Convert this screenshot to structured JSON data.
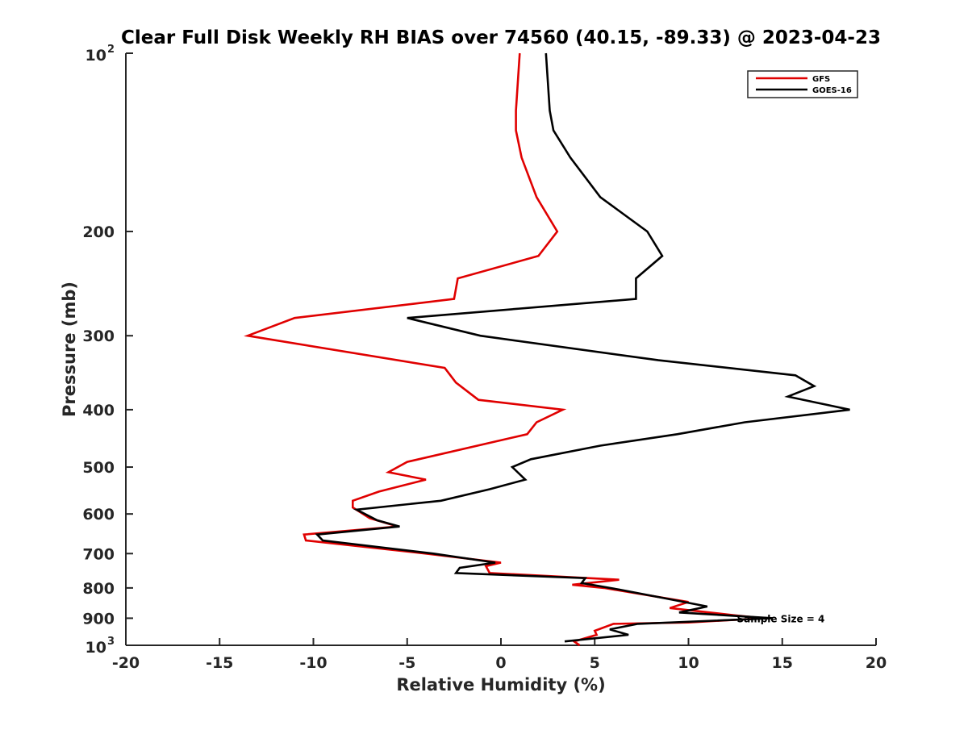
{
  "chart_data": {
    "type": "line",
    "title": "Clear Full Disk Weekly RH BIAS over 74560 (40.15, -89.33) @ 2023-04-23",
    "xlabel": "Relative Humidity (%)",
    "ylabel": "Pressure (mb)",
    "xlim": [
      -20,
      20
    ],
    "ylim": [
      100,
      1000
    ],
    "y_scale": "log",
    "y_reversed": true,
    "x_ticks": [
      -20,
      -15,
      -10,
      -5,
      0,
      5,
      10,
      15,
      20
    ],
    "x_tick_labels": [
      "-20",
      "-15",
      "-10",
      "-5",
      "0",
      "5",
      "10",
      "15",
      "20"
    ],
    "y_ticks": [
      100,
      200,
      300,
      400,
      500,
      600,
      700,
      800,
      900,
      1000
    ],
    "y_tick_labels": [
      {
        "value": 100,
        "base": "10",
        "exp": "2"
      },
      {
        "value": 200,
        "base": "200"
      },
      {
        "value": 300,
        "base": "300"
      },
      {
        "value": 400,
        "base": "400"
      },
      {
        "value": 500,
        "base": "500"
      },
      {
        "value": 600,
        "base": "600"
      },
      {
        "value": 700,
        "base": "700"
      },
      {
        "value": 800,
        "base": "800"
      },
      {
        "value": 900,
        "base": "900"
      },
      {
        "value": 1000,
        "base": "10",
        "exp": "3"
      }
    ],
    "grid": false,
    "legend_position": "top-right",
    "series": [
      {
        "name": "GFS",
        "color": "#e00000",
        "points": [
          [
            1.0,
            100
          ],
          [
            0.8,
            125
          ],
          [
            0.8,
            135
          ],
          [
            1.1,
            150
          ],
          [
            1.9,
            175
          ],
          [
            3.0,
            200
          ],
          [
            2.0,
            220
          ],
          [
            -2.3,
            240
          ],
          [
            -2.5,
            260
          ],
          [
            -11.0,
            280
          ],
          [
            -13.5,
            300
          ],
          [
            -3.0,
            340
          ],
          [
            -2.4,
            360
          ],
          [
            -1.2,
            385
          ],
          [
            3.3,
            400
          ],
          [
            1.9,
            420
          ],
          [
            1.4,
            440
          ],
          [
            -5.0,
            490
          ],
          [
            -6.0,
            510
          ],
          [
            -4.0,
            525
          ],
          [
            -6.5,
            550
          ],
          [
            -7.9,
            570
          ],
          [
            -7.9,
            585
          ],
          [
            -7.0,
            610
          ],
          [
            -5.5,
            630
          ],
          [
            -10.5,
            650
          ],
          [
            -10.4,
            665
          ],
          [
            -4.0,
            700
          ],
          [
            0.0,
            725
          ],
          [
            -0.8,
            735
          ],
          [
            -0.6,
            755
          ],
          [
            6.3,
            775
          ],
          [
            3.8,
            790
          ],
          [
            5.5,
            800
          ],
          [
            10.0,
            845
          ],
          [
            9.0,
            865
          ],
          [
            12.5,
            890
          ],
          [
            14.0,
            900
          ],
          [
            10.0,
            915
          ],
          [
            6.0,
            920
          ],
          [
            5.0,
            945
          ],
          [
            5.1,
            960
          ],
          [
            3.9,
            985
          ],
          [
            4.2,
            1000
          ]
        ]
      },
      {
        "name": "GOES-16",
        "color": "#000000",
        "points": [
          [
            2.4,
            100
          ],
          [
            2.6,
            125
          ],
          [
            2.8,
            135
          ],
          [
            3.7,
            150
          ],
          [
            5.3,
            175
          ],
          [
            7.8,
            200
          ],
          [
            8.6,
            220
          ],
          [
            7.2,
            240
          ],
          [
            7.2,
            260
          ],
          [
            -5.0,
            280
          ],
          [
            -1.1,
            300
          ],
          [
            8.4,
            330
          ],
          [
            15.7,
            350
          ],
          [
            16.7,
            365
          ],
          [
            15.3,
            380
          ],
          [
            18.6,
            400
          ],
          [
            13.0,
            420
          ],
          [
            9.4,
            440
          ],
          [
            5.3,
            460
          ],
          [
            1.6,
            485
          ],
          [
            0.6,
            500
          ],
          [
            1.3,
            525
          ],
          [
            -0.6,
            545
          ],
          [
            -3.2,
            570
          ],
          [
            -7.7,
            590
          ],
          [
            -6.6,
            615
          ],
          [
            -5.4,
            630
          ],
          [
            -9.8,
            650
          ],
          [
            -9.5,
            665
          ],
          [
            -3.6,
            700
          ],
          [
            -0.3,
            725
          ],
          [
            -2.2,
            740
          ],
          [
            -2.4,
            755
          ],
          [
            4.5,
            770
          ],
          [
            4.3,
            785
          ],
          [
            6.3,
            805
          ],
          [
            8.5,
            830
          ],
          [
            11.0,
            860
          ],
          [
            9.5,
            880
          ],
          [
            14.5,
            900
          ],
          [
            7.3,
            920
          ],
          [
            5.8,
            940
          ],
          [
            6.8,
            960
          ],
          [
            3.4,
            985
          ]
        ]
      }
    ],
    "annotations": [
      {
        "text": "Sample Size = 4",
        "x": 14.3,
        "y": 900
      }
    ]
  }
}
